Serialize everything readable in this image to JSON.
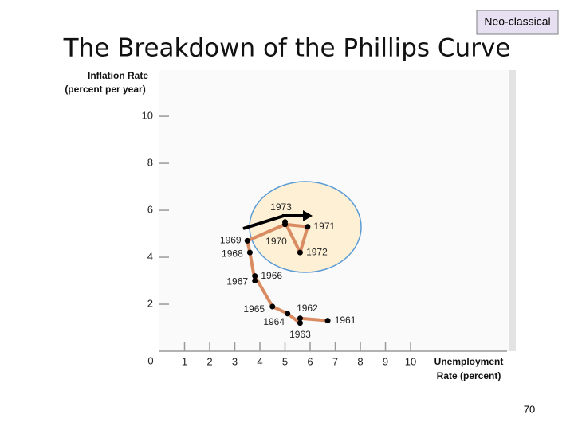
{
  "chart_data": {
    "type": "line",
    "title": "The Breakdown of the Phillips Curve",
    "tag": "Neo-classical",
    "page_number": "70",
    "y_label": [
      "Inflation Rate",
      "(percent per year)"
    ],
    "x_label": [
      "Unemployment",
      "Rate (percent)"
    ],
    "x": [
      6.7,
      5.6,
      5.6,
      5.1,
      4.5,
      3.8,
      3.8,
      3.6,
      3.5,
      5.0,
      5.9,
      5.6,
      5.0
    ],
    "series": [
      {
        "name": "Phillips curve",
        "color": "#d98b62",
        "values": [
          1.3,
          1.4,
          1.2,
          1.6,
          1.9,
          3.2,
          3.0,
          4.2,
          4.7,
          5.4,
          5.3,
          4.2,
          5.5
        ]
      }
    ],
    "point_labels": [
      "1961",
      "1962",
      "1963",
      "1964",
      "1965",
      "1966",
      "1967",
      "1968",
      "1969",
      "1970",
      "1971",
      "1972",
      "1973"
    ],
    "xlim": [
      0,
      13.84
    ],
    "ylim": [
      0,
      11.97
    ],
    "xticks": [
      1,
      2,
      3,
      4,
      5,
      6,
      7,
      8,
      9,
      10
    ],
    "yticks": [
      0,
      2,
      4,
      6,
      8,
      10
    ]
  }
}
